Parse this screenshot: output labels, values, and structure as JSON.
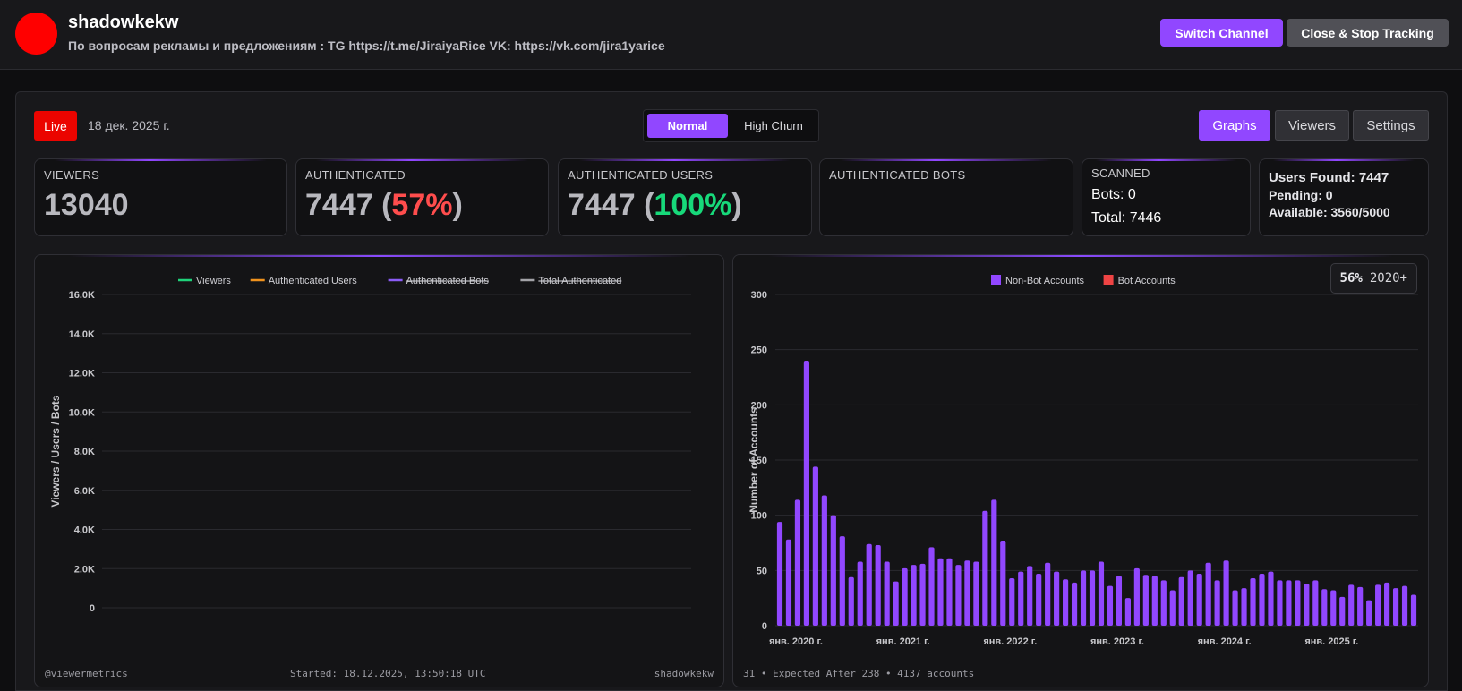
{
  "channel": {
    "name": "shadowkekw",
    "description": "По вопросам рекламы и предложениям : TG https://t.me/JiraiyaRice VK: https://vk.com/jira1yarice",
    "avatar_color": "#ff0000"
  },
  "header": {
    "switch_label": "Switch Channel",
    "close_label": "Close & Stop Tracking"
  },
  "status": {
    "live_label": "Live",
    "date": "18 дек. 2025 г."
  },
  "modes": {
    "normal": "Normal",
    "high_churn": "High Churn",
    "selected": "Normal"
  },
  "views": {
    "graphs": "Graphs",
    "viewers": "Viewers",
    "settings": "Settings",
    "selected": "Graphs"
  },
  "stats": {
    "viewers": {
      "label": "VIEWERS",
      "value": "13040"
    },
    "authenticated": {
      "label": "AUTHENTICATED",
      "value": "7447",
      "open": " (",
      "pct": "57%",
      "close": ")"
    },
    "auth_users": {
      "label": "AUTHENTICATED USERS",
      "value": "7447",
      "open": " (",
      "pct": "100%",
      "close": ")"
    },
    "auth_bots": {
      "label": "AUTHENTICATED BOTS"
    },
    "scanned": {
      "label": "SCANNED",
      "bots": "Bots: 0",
      "total": "Total: 7446"
    },
    "found": {
      "users": "Users Found: 7447",
      "pending": "Pending: 0",
      "available": "Available: 3560/5000"
    }
  },
  "colors": {
    "accent": "#9147ff",
    "live": "#eb0400",
    "viewers_line": "#1fd27a",
    "users_line": "#f0921d",
    "bots_line": "#8b5cf6",
    "total_line": "#a3a3a8",
    "bot_bar": "#ef4444"
  },
  "viewers_chart": {
    "footer_left": "@viewermetrics",
    "footer_center": "Started: 18.12.2025, 13:50:18 UTC",
    "footer_right": "shadowkekw"
  },
  "accounts_chart": {
    "pct": "56%",
    "pct_label": "2020+",
    "footer": "31 • Expected After 238 • 4137 accounts"
  },
  "chart_data": [
    {
      "type": "line",
      "title": "",
      "xlabel": "",
      "ylabel": "Viewers / Users / Bots",
      "ylim": [
        0,
        16000
      ],
      "yticks": [
        "0",
        "2.0K",
        "4.0K",
        "6.0K",
        "8.0K",
        "10.0K",
        "12.0K",
        "14.0K",
        "16.0K"
      ],
      "legend_position": "top-center",
      "series": [
        {
          "name": "Viewers",
          "color": "#1fd27a",
          "hidden": false,
          "values": []
        },
        {
          "name": "Authenticated Users",
          "color": "#f0921d",
          "hidden": false,
          "values": []
        },
        {
          "name": "Authenticated Bots",
          "color": "#8b5cf6",
          "hidden": true,
          "values": []
        },
        {
          "name": "Total Authenticated",
          "color": "#a3a3a8",
          "hidden": true,
          "values": []
        }
      ]
    },
    {
      "type": "bar",
      "title": "",
      "xlabel": "",
      "ylabel": "Number of Accounts",
      "ylim": [
        0,
        300
      ],
      "yticks": [
        "0",
        "50",
        "100",
        "150",
        "200",
        "250",
        "300"
      ],
      "xticks": [
        "янв. 2020 г.",
        "янв. 2021 г.",
        "янв. 2022 г.",
        "янв. 2023 г.",
        "янв. 2024 г.",
        "янв. 2025 г."
      ],
      "xtick_index": [
        0,
        12,
        24,
        36,
        48,
        60
      ],
      "legend_position": "top-center",
      "series": [
        {
          "name": "Non-Bot Accounts",
          "color": "#9147ff",
          "values": [
            94,
            78,
            114,
            240,
            144,
            118,
            100,
            81,
            44,
            58,
            74,
            73,
            58,
            40,
            52,
            55,
            56,
            71,
            61,
            61,
            55,
            59,
            58,
            104,
            114,
            77,
            43,
            49,
            54,
            47,
            57,
            49,
            42,
            39,
            50,
            50,
            58,
            36,
            45,
            25,
            52,
            46,
            45,
            41,
            32,
            44,
            50,
            47,
            57,
            41,
            59,
            32,
            34,
            43,
            47,
            49,
            41,
            41,
            41,
            38,
            41,
            33,
            32,
            26,
            37,
            35,
            23,
            37,
            39,
            34,
            36,
            28
          ]
        },
        {
          "name": "Bot Accounts",
          "color": "#ef4444",
          "values": [
            0,
            0,
            0,
            0,
            0,
            0,
            0,
            0,
            0,
            0,
            0,
            0,
            0,
            0,
            0,
            0,
            0,
            0,
            0,
            0,
            0,
            0,
            0,
            0,
            0,
            0,
            0,
            0,
            0,
            0,
            0,
            0,
            0,
            0,
            0,
            0,
            0,
            0,
            0,
            0,
            0,
            0,
            0,
            0,
            0,
            0,
            0,
            0,
            0,
            0,
            0,
            0,
            0,
            0,
            0,
            0,
            0,
            0,
            0,
            0,
            0,
            0,
            0,
            0,
            0,
            0,
            0,
            0,
            0,
            0,
            0,
            0
          ]
        }
      ]
    }
  ]
}
